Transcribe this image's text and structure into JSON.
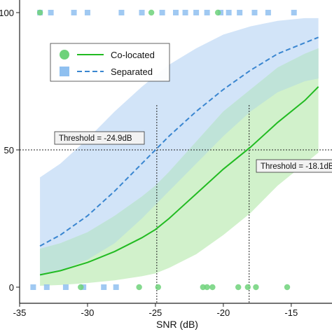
{
  "chart_data": {
    "type": "line",
    "xlabel": "SNR (dB)",
    "ylabel": "",
    "xlim": [
      -35,
      -12
    ],
    "ylim": [
      0,
      100
    ],
    "x_ticks": [
      -35,
      -30,
      -25,
      -20,
      -15
    ],
    "x_tick_labels": [
      "-35",
      "-30",
      "-25",
      "-20",
      "-15"
    ],
    "y_ticks": [
      0,
      50,
      100
    ],
    "y_tick_labels": [
      "0",
      "50",
      "100"
    ],
    "grid": false,
    "legend_position": "top-left",
    "series": [
      {
        "name": "Co-located",
        "style": "solid",
        "marker": "circle",
        "color": "#22bb22",
        "ci_color": "#c9efc2",
        "x": [
          -33.5,
          -32,
          -30,
          -28,
          -26,
          -25,
          -24,
          -22,
          -20,
          -18,
          -16,
          -14,
          -13
        ],
        "y": [
          4.5,
          6,
          9,
          13,
          18,
          21,
          25,
          34,
          43,
          51,
          60,
          68,
          73
        ],
        "ci_lower": [
          0.5,
          0.8,
          1.5,
          2.5,
          4,
          5,
          7,
          12,
          19,
          27,
          37,
          45,
          49
        ],
        "ci_upper": [
          14,
          16,
          20,
          26,
          33,
          37,
          42,
          53,
          64,
          72,
          80,
          85,
          87
        ],
        "raw_points_x": [
          -33.5,
          -30.5,
          -26.2,
          -25.3,
          -24.8,
          -21.5,
          -21.2,
          -20.8,
          -20.4,
          -18.9,
          -18.2,
          -17.6,
          -15.3
        ],
        "raw_points_y": [
          100,
          0,
          0,
          100,
          0,
          0,
          0,
          0,
          100,
          0,
          0,
          0,
          0
        ]
      },
      {
        "name": "Separated",
        "style": "dashed",
        "marker": "square",
        "color": "#3a86d0",
        "ci_color": "#d2e4f8",
        "x": [
          -33.5,
          -32,
          -30,
          -28,
          -26,
          -25,
          -24,
          -22,
          -20,
          -18,
          -16,
          -14,
          -13
        ],
        "y": [
          15,
          19,
          26,
          35,
          45,
          50,
          55,
          64,
          72,
          79,
          85,
          89,
          91
        ],
        "ci_lower": [
          4,
          6,
          10,
          16,
          25,
          30,
          35,
          45,
          55,
          64,
          71,
          75,
          76
        ],
        "ci_upper": [
          40,
          45,
          54,
          64,
          73,
          77,
          81,
          87,
          92,
          95,
          97,
          98,
          98
        ],
        "raw_points_x": [
          -33.5,
          -32.7,
          -31,
          -30,
          -27.5,
          -26,
          -24.5,
          -23.5,
          -22.8,
          -22,
          -21.2,
          -20.2,
          -19.6,
          -18.8,
          -17.7,
          -16.7,
          -14.8,
          -34.0,
          -33.0,
          -31.6,
          -30.3,
          -28.8,
          -27.9
        ],
        "raw_points_y": [
          100,
          100,
          100,
          100,
          100,
          100,
          100,
          100,
          100,
          100,
          100,
          100,
          100,
          100,
          100,
          100,
          100,
          0,
          0,
          0,
          0,
          0,
          0
        ]
      }
    ],
    "overlap_color": "#bfe3d8",
    "reference_lines": [
      {
        "orientation": "horizontal",
        "value": 50
      },
      {
        "orientation": "vertical",
        "value": -24.9
      },
      {
        "orientation": "vertical",
        "value": -18.1
      }
    ],
    "annotations": [
      {
        "text": "Threshold = -24.9dB",
        "x": -24.9,
        "y": 50
      },
      {
        "text": "Threshold = -18.1dB",
        "x": -18.1,
        "y": 50
      }
    ]
  }
}
